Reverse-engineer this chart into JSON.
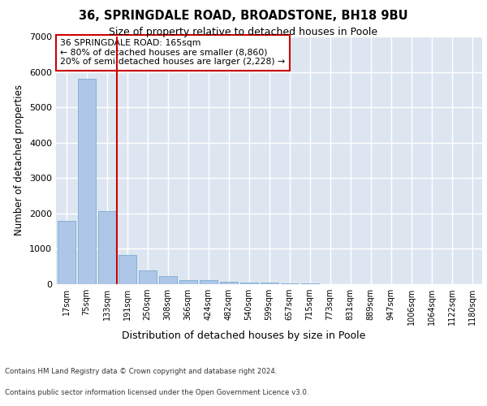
{
  "title_line1": "36, SPRINGDALE ROAD, BROADSTONE, BH18 9BU",
  "title_line2": "Size of property relative to detached houses in Poole",
  "xlabel": "Distribution of detached houses by size in Poole",
  "ylabel": "Number of detached properties",
  "categories": [
    "17sqm",
    "75sqm",
    "133sqm",
    "191sqm",
    "250sqm",
    "308sqm",
    "366sqm",
    "424sqm",
    "482sqm",
    "540sqm",
    "599sqm",
    "657sqm",
    "715sqm",
    "773sqm",
    "831sqm",
    "889sqm",
    "947sqm",
    "1006sqm",
    "1064sqm",
    "1122sqm",
    "1180sqm"
  ],
  "values": [
    1780,
    5810,
    2060,
    830,
    390,
    230,
    120,
    110,
    70,
    50,
    50,
    30,
    20,
    0,
    0,
    0,
    0,
    0,
    0,
    0,
    0
  ],
  "bar_color": "#aec6e8",
  "bar_edge_color": "#7baad4",
  "vline_color": "#cc0000",
  "annotation_text": "36 SPRINGDALE ROAD: 165sqm\n← 80% of detached houses are smaller (8,860)\n20% of semi-detached houses are larger (2,228) →",
  "annotation_box_color": "white",
  "annotation_box_edge_color": "#cc0000",
  "ylim": [
    0,
    7000
  ],
  "yticks": [
    0,
    1000,
    2000,
    3000,
    4000,
    5000,
    6000,
    7000
  ],
  "background_color": "#dde6f0",
  "grid_color": "white",
  "footer_line1": "Contains HM Land Registry data © Crown copyright and database right 2024.",
  "footer_line2": "Contains public sector information licensed under the Open Government Licence v3.0."
}
